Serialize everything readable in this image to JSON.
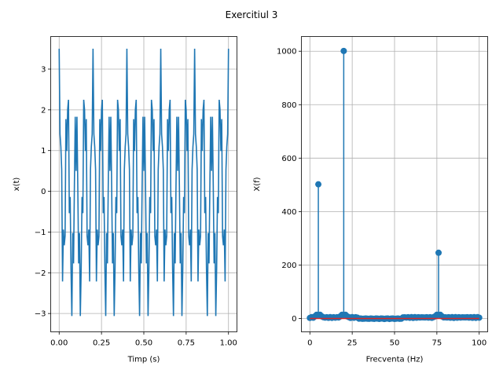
{
  "figure": {
    "suptitle": "Exercitiul 3"
  },
  "chart_data": [
    {
      "type": "line",
      "xlabel": "Timp (s)",
      "ylabel": "x(t)",
      "xlim": [
        -0.05,
        1.05
      ],
      "ylim": [
        -3.45,
        3.8
      ],
      "xticks": [
        0.0,
        0.25,
        0.5,
        0.75,
        1.0
      ],
      "xtick_labels": [
        "0.00",
        "0.25",
        "0.50",
        "0.75",
        "1.00"
      ],
      "yticks": [
        -3,
        -2,
        -1,
        0,
        1,
        2,
        3
      ],
      "ytick_labels": [
        "−3",
        "−2",
        "−1",
        "0",
        "1",
        "2",
        "3"
      ],
      "grid": true,
      "series": [
        {
          "color": "#1f77b4",
          "components": [
            {
              "amplitude": 0.5,
              "frequency_hz": 5
            },
            {
              "amplitude": 2,
              "frequency_hz": 20
            },
            {
              "amplitude": 1,
              "frequency_hz": 75
            }
          ],
          "t_start": 0,
          "t_end": 1,
          "samples": 201
        }
      ]
    },
    {
      "type": "stem",
      "xlabel": "Frecventa (Hz)",
      "ylabel": "X(f)",
      "xlim": [
        -5,
        105
      ],
      "ylim": [
        -50,
        1055
      ],
      "xticks": [
        0,
        25,
        50,
        75,
        100
      ],
      "xtick_labels": [
        "0",
        "25",
        "50",
        "75",
        "100"
      ],
      "yticks": [
        0,
        200,
        400,
        600,
        800,
        1000
      ],
      "ytick_labels": [
        "0",
        "200",
        "400",
        "600",
        "800",
        "1000"
      ],
      "grid": true,
      "stem_color": "#1f77b4",
      "baseline_color": "#d62728",
      "f_start": 0,
      "f_end": 100,
      "points": 101,
      "peaks": [
        {
          "frequency_hz": 5,
          "value": 502
        },
        {
          "frequency_hz": 20,
          "value": 1001
        },
        {
          "frequency_hz": 76,
          "value": 246
        }
      ]
    }
  ]
}
